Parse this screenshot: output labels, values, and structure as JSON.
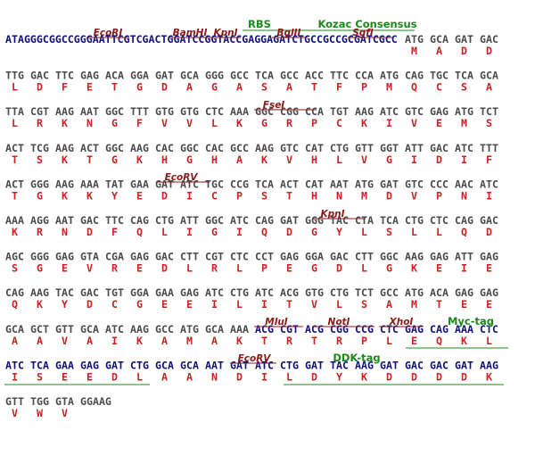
{
  "rows": [
    {
      "prefix": "ATAGGGCGGCCGGGAATTCGTCGACTGGATCCGGTACCGAGGAGATCTGCCGCCGCGATCGCC",
      "codons": [
        "ATG",
        "GCA",
        "GAT",
        "GAC"
      ],
      "aa": [
        "M",
        "A",
        "D",
        "D"
      ]
    },
    {
      "codons": [
        "TTG",
        "GAC",
        "TTC",
        "GAG",
        "ACA",
        "GGA",
        "GAT",
        "GCA",
        "GGG",
        "GCC",
        "TCA",
        "GCC",
        "ACC",
        "TTC",
        "CCA",
        "ATG",
        "CAG",
        "TGC",
        "TCA",
        "GCA"
      ],
      "aa": [
        "L",
        "D",
        "F",
        "E",
        "T",
        "G",
        "D",
        "A",
        "G",
        "A",
        "S",
        "A",
        "T",
        "F",
        "P",
        "M",
        "Q",
        "C",
        "S",
        "A"
      ]
    },
    {
      "codons": [
        "TTA",
        "CGT",
        "AAG",
        "AAT",
        "GGC",
        "TTT",
        "GTG",
        "GTG",
        "CTC",
        "AAA",
        "GGC",
        "CGG",
        "CCA",
        "TGT",
        "AAG",
        "ATC",
        "GTC",
        "GAG",
        "ATG",
        "TCT"
      ],
      "aa": [
        "L",
        "R",
        "K",
        "N",
        "G",
        "F",
        "V",
        "V",
        "L",
        "K",
        "G",
        "R",
        "P",
        "C",
        "K",
        "I",
        "V",
        "E",
        "M",
        "S"
      ]
    },
    {
      "codons": [
        "ACT",
        "TCG",
        "AAG",
        "ACT",
        "GGC",
        "AAG",
        "CAC",
        "GGC",
        "CAC",
        "GCC",
        "AAG",
        "GTC",
        "CAT",
        "CTG",
        "GTT",
        "GGT",
        "ATT",
        "GAC",
        "ATC",
        "TTT"
      ],
      "aa": [
        "T",
        "S",
        "K",
        "T",
        "G",
        "K",
        "H",
        "G",
        "H",
        "A",
        "K",
        "V",
        "H",
        "L",
        "V",
        "G",
        "I",
        "D",
        "I",
        "F"
      ]
    },
    {
      "codons": [
        "ACT",
        "GGG",
        "AAG",
        "AAA",
        "TAT",
        "GAA",
        "GAT",
        "ATC",
        "TGC",
        "CCG",
        "TCA",
        "ACT",
        "CAT",
        "AAT",
        "ATG",
        "GAT",
        "GTC",
        "CCC",
        "AAC",
        "ATC"
      ],
      "aa": [
        "T",
        "G",
        "K",
        "K",
        "Y",
        "E",
        "D",
        "I",
        "C",
        "P",
        "S",
        "T",
        "H",
        "N",
        "M",
        "D",
        "V",
        "P",
        "N",
        "I"
      ]
    },
    {
      "codons": [
        "AAA",
        "AGG",
        "AAT",
        "GAC",
        "TTC",
        "CAG",
        "CTG",
        "ATT",
        "GGC",
        "ATC",
        "CAG",
        "GAT",
        "GGG",
        "TAC",
        "CTA",
        "TCA",
        "CTG",
        "CTC",
        "CAG",
        "GAC"
      ],
      "aa": [
        "K",
        "R",
        "N",
        "D",
        "F",
        "Q",
        "L",
        "I",
        "G",
        "I",
        "Q",
        "D",
        "G",
        "Y",
        "L",
        "S",
        "L",
        "L",
        "Q",
        "D"
      ]
    },
    {
      "codons": [
        "AGC",
        "GGG",
        "GAG",
        "GTA",
        "CGA",
        "GAG",
        "GAC",
        "CTT",
        "CGT",
        "CTC",
        "CCT",
        "GAG",
        "GGA",
        "GAC",
        "CTT",
        "GGC",
        "AAG",
        "GAG",
        "ATT",
        "GAG"
      ],
      "aa": [
        "S",
        "G",
        "E",
        "V",
        "R",
        "E",
        "D",
        "L",
        "R",
        "L",
        "P",
        "E",
        "G",
        "D",
        "L",
        "G",
        "K",
        "E",
        "I",
        "E"
      ]
    },
    {
      "codons": [
        "CAG",
        "AAG",
        "TAC",
        "GAC",
        "TGT",
        "GGA",
        "GAA",
        "GAG",
        "ATC",
        "CTG",
        "ATC",
        "ACG",
        "GTG",
        "CTG",
        "TCT",
        "GCC",
        "ATG",
        "ACA",
        "GAG",
        "GAG"
      ],
      "aa": [
        "Q",
        "K",
        "Y",
        "D",
        "C",
        "G",
        "E",
        "E",
        "I",
        "L",
        "I",
        "T",
        "V",
        "L",
        "S",
        "A",
        "M",
        "T",
        "E",
        "E"
      ]
    },
    {
      "codons": [
        "GCA",
        "GCT",
        "GTT",
        "GCA",
        "ATC",
        "AAG",
        "GCC",
        "ATG",
        "GCA",
        "AAA",
        "ACG",
        "CGT",
        "ACG",
        "CGG",
        "CCG",
        "CTC",
        "GAG",
        "CAG",
        "AAA",
        "CTC"
      ],
      "aa": [
        "A",
        "A",
        "V",
        "A",
        "I",
        "K",
        "A",
        "M",
        "A",
        "K",
        "T",
        "R",
        "T",
        "R",
        "P",
        "L",
        "E",
        "Q",
        "K",
        "L"
      ]
    },
    {
      "codons": [
        "ATC",
        "TCA",
        "GAA",
        "GAG",
        "GAT",
        "CTG",
        "GCA",
        "GCA",
        "AAT",
        "GAT",
        "ATC",
        "CTG",
        "GAT",
        "TAC",
        "AAG",
        "GAT",
        "GAC",
        "GAC",
        "GAT",
        "AAG"
      ],
      "aa": [
        "I",
        "S",
        "E",
        "E",
        "D",
        "L",
        "A",
        "A",
        "N",
        "D",
        "I",
        "L",
        "D",
        "Y",
        "K",
        "D",
        "D",
        "D",
        "D",
        "K"
      ]
    },
    {
      "codons": [
        "GTT",
        "TGG",
        "GTA",
        "GGAAG"
      ],
      "aa": [
        "V",
        "W",
        "V"
      ]
    }
  ],
  "features": [
    {
      "label": "RBS"
    },
    {
      "label": "Kozac Consensus"
    },
    {
      "label": "EcoRI"
    },
    {
      "label": "BamHI"
    },
    {
      "label": "KpnI"
    },
    {
      "label": "BglII"
    },
    {
      "label": "SgfI"
    },
    {
      "label": "FseI"
    },
    {
      "label": "EcoRV"
    },
    {
      "label": "KpnI"
    },
    {
      "label": "MluI"
    },
    {
      "label": "NotI"
    },
    {
      "label": "XhoI"
    },
    {
      "label": "Myc-tag"
    },
    {
      "label": "EcoRV"
    },
    {
      "label": "DDK-tag"
    }
  ]
}
